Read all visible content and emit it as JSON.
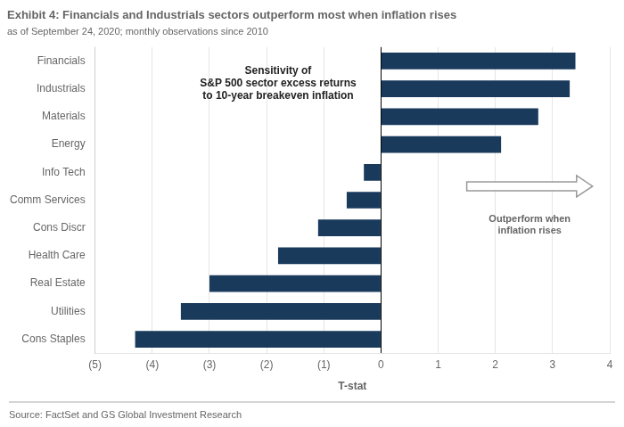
{
  "chart_data": {
    "type": "bar",
    "orientation": "horizontal",
    "title": "Exhibit 4: Financials and Industrials sectors outperform most when inflation rises",
    "subtitle": "as of September 24, 2020; monthly observations since 2010",
    "source": "Source: FactSet and GS Global Investment Research",
    "xlabel": "T-stat",
    "categories": [
      "Cons Staples",
      "Utilities",
      "Real Estate",
      "Health Care",
      "Cons Discr",
      "Comm Services",
      "Info Tech",
      "Energy",
      "Materials",
      "Industrials",
      "Financials"
    ],
    "values": [
      -4.3,
      -3.5,
      -3.0,
      -1.8,
      -1.1,
      -0.6,
      -0.3,
      2.1,
      2.75,
      3.3,
      3.4
    ],
    "color": "#1a3a5c",
    "xlim": [
      -5,
      4
    ],
    "xticks": [
      {
        "value": -5,
        "label": "(5)"
      },
      {
        "value": -4,
        "label": "(4)"
      },
      {
        "value": -3,
        "label": "(3)"
      },
      {
        "value": -2,
        "label": "(2)"
      },
      {
        "value": -1,
        "label": "(1)"
      },
      0,
      1,
      2,
      3,
      4
    ],
    "grid": true,
    "annotations": [
      "Sensitivity of\nS&P 500 sector excess returns\nto 10-year breakeven inflation",
      "Outperform when\ninflation rises"
    ]
  }
}
